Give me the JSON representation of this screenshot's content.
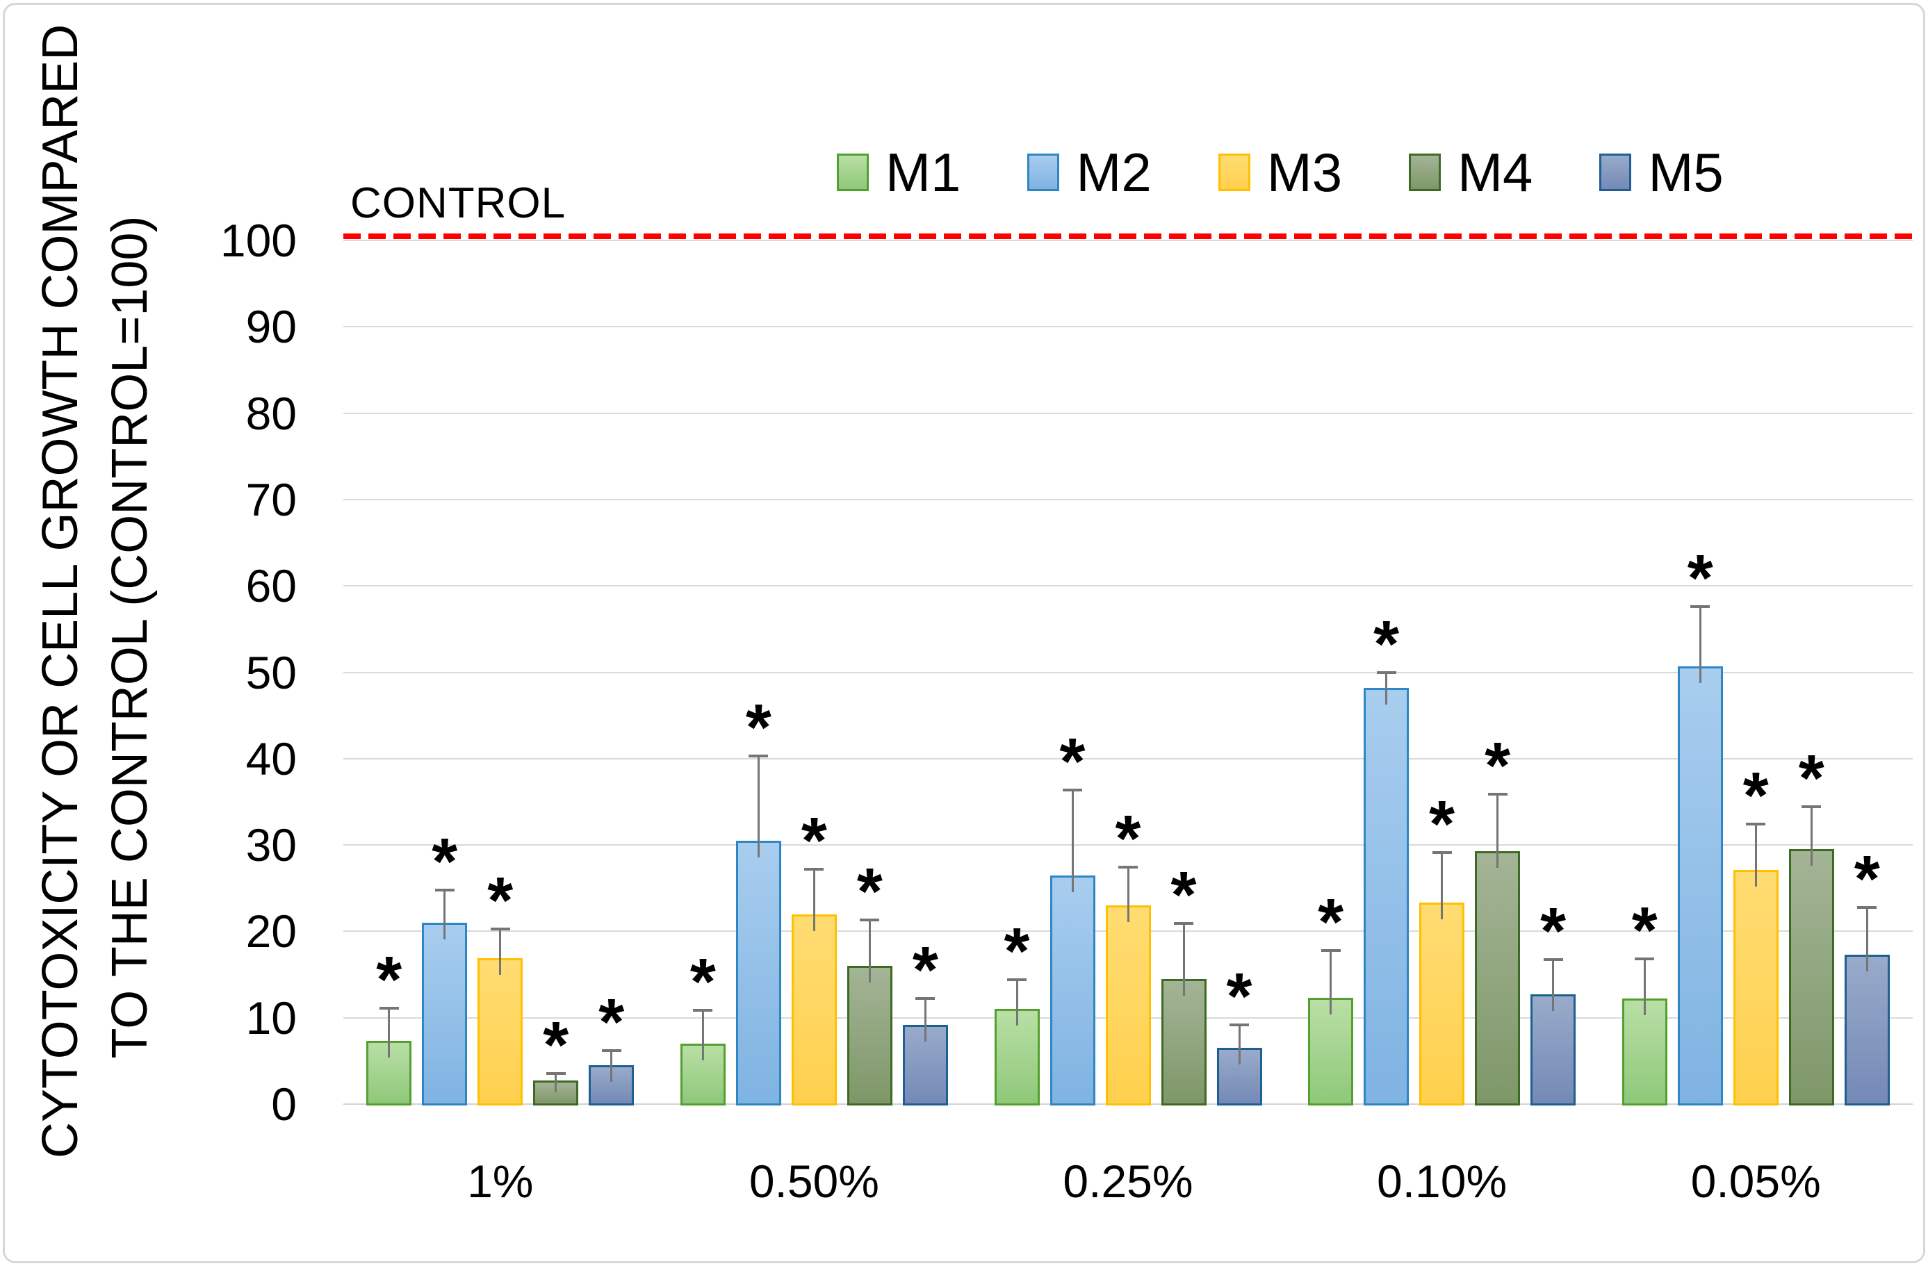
{
  "figure": {
    "y_axis_title_line1": "CYTOTOXICITY OR CELL GROWTH COMPARED",
    "y_axis_title_line2": "TO THE CONTROL (CONTROL=100)",
    "control_label": "CONTROL"
  },
  "colors": {
    "control_line": "#FF0000",
    "gridline": "#D9D9D9",
    "error_bar": "#757575",
    "text": "#000000",
    "background": "#FFFFFF"
  },
  "chart_data": {
    "type": "bar",
    "title": "",
    "xlabel": "",
    "ylabel": "CYTOTOXICITY OR CELL GROWTH COMPARED TO THE CONTROL (CONTROL=100)",
    "ylim": [
      0,
      100
    ],
    "yticks": [
      0,
      10,
      20,
      30,
      40,
      50,
      60,
      70,
      80,
      90,
      100
    ],
    "grid": "horizontal",
    "legend_position": "top",
    "categories": [
      "1%",
      "0.50%",
      "0.25%",
      "0.10%",
      "0.05%"
    ],
    "control_line": {
      "label": "CONTROL",
      "value": 100
    },
    "series": [
      {
        "name": "M1",
        "fill_top": "#B9DFA6",
        "fill_bottom": "#8FC87A",
        "border": "#54A02F",
        "values": [
          7.3,
          7.0,
          11.0,
          12.3,
          12.2
        ],
        "errors": [
          3.8,
          3.9,
          3.4,
          5.5,
          4.6
        ],
        "significance": [
          "*",
          "*",
          "*",
          "*",
          "*"
        ]
      },
      {
        "name": "M2",
        "fill_top": "#A8CDEE",
        "fill_bottom": "#7FB3E2",
        "border": "#2E86C5",
        "values": [
          21.0,
          30.5,
          26.5,
          48.2,
          50.7
        ],
        "errors": [
          3.8,
          9.8,
          9.9,
          1.8,
          6.9
        ],
        "significance": [
          "*",
          "*",
          "*",
          "*",
          "*"
        ]
      },
      {
        "name": "M3",
        "fill_top": "#FFDC72",
        "fill_bottom": "#FFD04E",
        "border": "#FFC000",
        "values": [
          16.9,
          22.0,
          23.0,
          23.3,
          27.1
        ],
        "errors": [
          3.4,
          5.2,
          4.4,
          5.8,
          5.3
        ],
        "significance": [
          "*",
          "*",
          "*",
          "*",
          "*"
        ]
      },
      {
        "name": "M4",
        "fill_top": "#A4B496",
        "fill_bottom": "#7E9768",
        "border": "#3E6A26",
        "values": [
          2.7,
          16.0,
          14.5,
          29.3,
          29.5
        ],
        "errors": [
          0.8,
          5.3,
          6.4,
          6.6,
          4.9
        ],
        "significance": [
          "*",
          "*",
          "*",
          "*",
          "*"
        ]
      },
      {
        "name": "M5",
        "fill_top": "#99ABCA",
        "fill_bottom": "#7489B6",
        "border": "#1F5F92",
        "values": [
          4.5,
          9.2,
          6.5,
          12.7,
          17.3
        ],
        "errors": [
          1.7,
          3.0,
          2.7,
          4.0,
          5.5
        ],
        "significance": [
          "*",
          "*",
          "*",
          "*",
          "*"
        ]
      }
    ]
  }
}
